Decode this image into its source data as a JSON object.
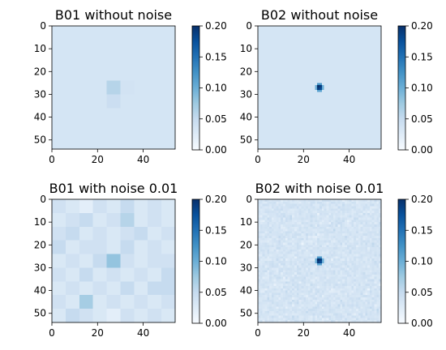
{
  "chart_data": [
    {
      "type": "heatmap",
      "title": "B01 without noise",
      "xlabel": "",
      "ylabel": "",
      "grid": false,
      "cell_size": 6,
      "rows": 9,
      "cols": 9,
      "extent": [
        0,
        54
      ],
      "xlim": [
        0,
        54
      ],
      "ylim": [
        54,
        0
      ],
      "background_value": 0.035,
      "cells": [
        {
          "r": 4,
          "c": 4,
          "v": 0.06
        },
        {
          "r": 5,
          "c": 4,
          "v": 0.045
        },
        {
          "r": 4,
          "c": 5,
          "v": 0.038
        }
      ],
      "x_ticks": [
        0,
        20,
        40
      ],
      "y_ticks": [
        0,
        10,
        20,
        30,
        40,
        50
      ],
      "colorbar": {
        "min": 0.0,
        "max": 0.2,
        "ticks": [
          "0.00",
          "0.05",
          "0.10",
          "0.15",
          "0.20"
        ]
      }
    },
    {
      "type": "heatmap",
      "title": "B02 without noise",
      "xlabel": "",
      "ylabel": "",
      "grid": false,
      "cell_size": 1,
      "rows": 54,
      "cols": 54,
      "extent": [
        0,
        54
      ],
      "xlim": [
        0,
        54
      ],
      "ylim": [
        54,
        0
      ],
      "background_value": 0.035,
      "cells": [
        {
          "r": 26,
          "c": 26,
          "v": 0.2
        },
        {
          "r": 26,
          "c": 27,
          "v": 0.19
        },
        {
          "r": 27,
          "c": 26,
          "v": 0.19
        },
        {
          "r": 27,
          "c": 27,
          "v": 0.18
        },
        {
          "r": 25,
          "c": 26,
          "v": 0.12
        },
        {
          "r": 25,
          "c": 27,
          "v": 0.12
        },
        {
          "r": 28,
          "c": 26,
          "v": 0.11
        },
        {
          "r": 28,
          "c": 27,
          "v": 0.11
        },
        {
          "r": 26,
          "c": 25,
          "v": 0.1
        },
        {
          "r": 27,
          "c": 25,
          "v": 0.1
        },
        {
          "r": 26,
          "c": 28,
          "v": 0.1
        },
        {
          "r": 27,
          "c": 28,
          "v": 0.1
        }
      ],
      "x_ticks": [
        0,
        20,
        40
      ],
      "y_ticks": [
        0,
        10,
        20,
        30,
        40,
        50
      ],
      "colorbar": {
        "min": 0.0,
        "max": 0.2,
        "ticks": [
          "0.00",
          "0.05",
          "0.10",
          "0.15",
          "0.20"
        ]
      }
    },
    {
      "type": "heatmap",
      "title": "B01 with noise 0.01",
      "xlabel": "",
      "ylabel": "",
      "grid": false,
      "cell_size": 6,
      "rows": 9,
      "cols": 9,
      "extent": [
        0,
        54
      ],
      "xlim": [
        0,
        54
      ],
      "ylim": [
        54,
        0
      ],
      "values": [
        [
          0.04,
          0.03,
          0.02,
          0.04,
          0.03,
          0.05,
          0.03,
          0.04,
          0.03
        ],
        [
          0.03,
          0.04,
          0.05,
          0.03,
          0.04,
          0.06,
          0.03,
          0.04,
          0.03
        ],
        [
          0.04,
          0.05,
          0.03,
          0.04,
          0.03,
          0.04,
          0.05,
          0.03,
          0.04
        ],
        [
          0.05,
          0.03,
          0.04,
          0.04,
          0.03,
          0.05,
          0.03,
          0.04,
          0.03
        ],
        [
          0.03,
          0.04,
          0.03,
          0.05,
          0.08,
          0.04,
          0.03,
          0.04,
          0.04
        ],
        [
          0.04,
          0.03,
          0.05,
          0.03,
          0.04,
          0.03,
          0.04,
          0.03,
          0.05
        ],
        [
          0.03,
          0.04,
          0.03,
          0.04,
          0.03,
          0.05,
          0.03,
          0.05,
          0.05
        ],
        [
          0.04,
          0.03,
          0.07,
          0.03,
          0.04,
          0.03,
          0.04,
          0.03,
          0.04
        ],
        [
          0.03,
          0.05,
          0.04,
          0.03,
          0.02,
          0.04,
          0.03,
          0.04,
          0.03
        ]
      ],
      "x_ticks": [
        0,
        20,
        40
      ],
      "y_ticks": [
        0,
        10,
        20,
        30,
        40,
        50
      ],
      "colorbar": {
        "min": 0.0,
        "max": 0.2,
        "ticks": [
          "0.00",
          "0.05",
          "0.10",
          "0.15",
          "0.20"
        ]
      }
    },
    {
      "type": "heatmap",
      "title": "B02 with noise 0.01",
      "xlabel": "",
      "ylabel": "",
      "grid": false,
      "cell_size": 1,
      "rows": 54,
      "cols": 54,
      "extent": [
        0,
        54
      ],
      "xlim": [
        0,
        54
      ],
      "ylim": [
        54,
        0
      ],
      "background_value": 0.035,
      "noise_std": 0.01,
      "cells": [
        {
          "r": 26,
          "c": 26,
          "v": 0.2
        },
        {
          "r": 26,
          "c": 27,
          "v": 0.19
        },
        {
          "r": 27,
          "c": 26,
          "v": 0.19
        },
        {
          "r": 27,
          "c": 27,
          "v": 0.18
        },
        {
          "r": 25,
          "c": 26,
          "v": 0.12
        },
        {
          "r": 25,
          "c": 27,
          "v": 0.12
        },
        {
          "r": 28,
          "c": 26,
          "v": 0.11
        },
        {
          "r": 28,
          "c": 27,
          "v": 0.11
        },
        {
          "r": 26,
          "c": 25,
          "v": 0.1
        },
        {
          "r": 27,
          "c": 25,
          "v": 0.1
        },
        {
          "r": 26,
          "c": 28,
          "v": 0.1
        },
        {
          "r": 27,
          "c": 28,
          "v": 0.1
        }
      ],
      "x_ticks": [
        0,
        20,
        40
      ],
      "y_ticks": [
        0,
        10,
        20,
        30,
        40,
        50
      ],
      "colorbar": {
        "min": 0.0,
        "max": 0.2,
        "ticks": [
          "0.00",
          "0.05",
          "0.10",
          "0.15",
          "0.20"
        ]
      }
    }
  ],
  "colormap": {
    "name": "Blues",
    "stops": [
      "#f7fbff",
      "#deebf7",
      "#c6dbef",
      "#9ecae1",
      "#6baed6",
      "#4292c6",
      "#2171b5",
      "#08519c",
      "#08306b"
    ]
  }
}
